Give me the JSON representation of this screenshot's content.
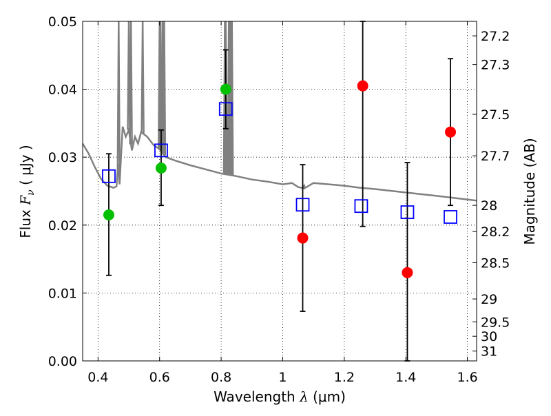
{
  "chart_data": {
    "type": "scatter",
    "xlabel": {
      "prefix": "Wavelength  ",
      "sym": "λ",
      "unit": " (μm)"
    },
    "ylabel": {
      "prefix": "Flux  ",
      "sym": "F",
      "sub": "ν",
      "unit": "  ( μJy )"
    },
    "y2label": "Magnitude (AB)",
    "xlim": [
      0.35,
      1.63
    ],
    "ylim": [
      0.0,
      0.05
    ],
    "xticks": [
      0.4,
      0.6,
      0.8,
      1.0,
      1.2,
      1.4,
      1.6
    ],
    "xtick_labels": [
      "0.4",
      "0.6",
      "0.8",
      "1",
      "1.2",
      "1.4",
      "1.6"
    ],
    "yticks": [
      0.0,
      0.01,
      0.02,
      0.03,
      0.04,
      0.05
    ],
    "ytick_labels": [
      "0.00",
      "0.01",
      "0.02",
      "0.03",
      "0.04",
      "0.05"
    ],
    "mag_ticks": [
      27.2,
      27.3,
      27.5,
      27.7,
      28,
      28.2,
      28.5,
      29,
      29.5,
      30,
      31
    ],
    "mag_tick_labels": [
      "27.2",
      "27.3",
      "27.5",
      "27.7",
      "28",
      "28.2",
      "28.5",
      "29",
      "29.5",
      "30",
      "31"
    ],
    "mag_zeropoint": 23.9,
    "grid": true,
    "series": [
      {
        "marker": "open-square",
        "color": "#0000ff",
        "x": [
          0.435,
          0.605,
          0.815,
          1.065,
          1.255,
          1.405,
          1.545
        ],
        "y": [
          0.0272,
          0.031,
          0.0371,
          0.023,
          0.0228,
          0.0219,
          0.0212
        ]
      },
      {
        "marker": "circle",
        "color": "#00c000",
        "x": [
          0.435,
          0.605,
          0.815
        ],
        "y": [
          0.0215,
          0.0284,
          0.04
        ]
      },
      {
        "marker": "circle",
        "color": "#ff0000",
        "x": [
          1.065,
          1.26,
          1.405,
          1.545
        ],
        "y": [
          0.0181,
          0.0405,
          0.013,
          0.0337
        ]
      }
    ],
    "errorbars": {
      "color": "#000000",
      "x": [
        0.435,
        0.605,
        0.815,
        1.065,
        1.26,
        1.405,
        1.545
      ],
      "ylow": [
        0.0126,
        0.0229,
        0.0342,
        0.0073,
        0.0198,
        0.0,
        0.0229
      ],
      "yhigh": [
        0.0305,
        0.034,
        0.0458,
        0.0289,
        0.05,
        0.0292,
        0.0445
      ]
    },
    "model_spectrum": {
      "color": "#808080",
      "x": [
        0.35,
        0.37,
        0.39,
        0.41,
        0.43,
        0.45,
        0.46,
        0.465,
        0.47,
        0.48,
        0.49,
        0.5,
        0.51,
        0.52,
        0.53,
        0.54,
        0.56,
        0.58,
        0.6,
        0.62,
        0.65,
        0.7,
        0.75,
        0.8,
        0.85,
        0.9,
        0.95,
        1.0,
        1.03,
        1.05,
        1.07,
        1.1,
        1.15,
        1.2,
        1.25,
        1.3,
        1.4,
        1.5,
        1.63
      ],
      "y": [
        0.032,
        0.0305,
        0.0285,
        0.0268,
        0.0258,
        0.0255,
        0.0257,
        0.029,
        0.026,
        0.0345,
        0.033,
        0.034,
        0.031,
        0.033,
        0.032,
        0.0337,
        0.033,
        0.0318,
        0.0312,
        0.03,
        0.0295,
        0.0288,
        0.0282,
        0.0276,
        0.0272,
        0.0267,
        0.0264,
        0.026,
        0.0262,
        0.0256,
        0.0254,
        0.0262,
        0.026,
        0.0258,
        0.0255,
        0.0253,
        0.0248,
        0.0243,
        0.0236
      ]
    },
    "emission_lines": [
      {
        "x": 0.467,
        "peak": 0.05
      },
      {
        "x": 0.5,
        "peak": 0.05
      },
      {
        "x": 0.507,
        "peak": 0.05
      },
      {
        "x": 0.545,
        "peak": 0.05
      },
      {
        "x": 0.6,
        "peak": 0.05
      },
      {
        "x": 0.603,
        "peak": 0.05
      },
      {
        "x": 0.61,
        "peak": 0.05
      },
      {
        "x": 0.612,
        "peak": 0.05
      },
      {
        "x": 0.615,
        "peak": 0.05
      },
      {
        "x": 0.812,
        "peak": 0.05
      },
      {
        "x": 0.815,
        "peak": 0.05
      },
      {
        "x": 0.825,
        "peak": 0.05
      },
      {
        "x": 0.83,
        "peak": 0.05
      },
      {
        "x": 0.835,
        "peak": 0.05
      },
      {
        "x": 1.07,
        "peak": 0.0258
      }
    ]
  }
}
